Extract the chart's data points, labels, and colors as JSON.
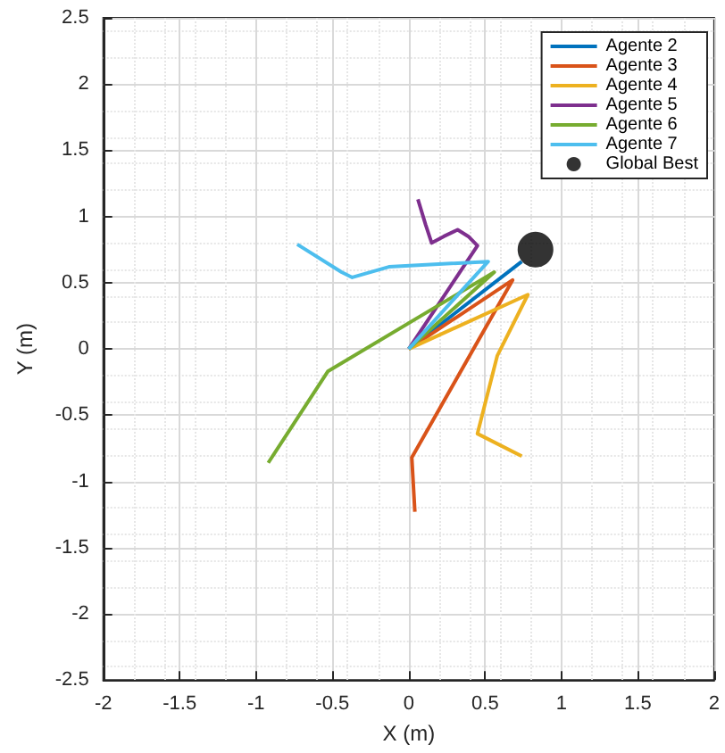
{
  "chart_data": {
    "type": "line",
    "xlabel": "X (m)",
    "ylabel": "Y (m)",
    "xlim": [
      -2,
      2
    ],
    "xticks": [
      -2,
      -1.5,
      -1,
      -0.5,
      0,
      0.5,
      1,
      1.5,
      2
    ],
    "ylim": [
      -2.5,
      2.5
    ],
    "yticks": [
      -2.5,
      -2,
      -1.5,
      -1,
      -0.5,
      0,
      0.5,
      1,
      1.5,
      2,
      2.5
    ],
    "grid": true,
    "legend": "top right",
    "series": [
      {
        "name": "Agente 2",
        "color": "#0072bd",
        "x": [
          0,
          0.74
        ],
        "values": [
          0,
          0.66
        ]
      },
      {
        "name": "Agente 3",
        "color": "#d95319",
        "x": [
          0,
          0.68,
          0.02,
          0.04
        ],
        "values": [
          0,
          0.52,
          -0.82,
          -1.23
        ]
      },
      {
        "name": "Agente 4",
        "color": "#edb120",
        "x": [
          0,
          0.78,
          0.58,
          0.45,
          0.74
        ],
        "values": [
          0,
          0.41,
          -0.05,
          -0.64,
          -0.81
        ]
      },
      {
        "name": "Agente 5",
        "color": "#7e2f8e",
        "x": [
          0,
          0.45,
          0.39,
          0.32,
          0.23,
          0.15,
          0.11,
          0.06
        ],
        "values": [
          0,
          0.78,
          0.85,
          0.9,
          0.85,
          0.8,
          0.94,
          1.13
        ]
      },
      {
        "name": "Agente 6",
        "color": "#77ac30",
        "x": [
          0,
          0.56,
          -0.53,
          -0.92
        ],
        "values": [
          0,
          0.58,
          -0.17,
          -0.86
        ]
      },
      {
        "name": "Agente 7",
        "color": "#4dbeee",
        "x": [
          0,
          0.52,
          -0.13,
          -0.37,
          -0.44,
          -0.73
        ],
        "values": [
          0,
          0.66,
          0.62,
          0.54,
          0.58,
          0.79
        ]
      },
      {
        "name": "Global Best",
        "type": "scatter",
        "marker": "circle",
        "color": "#000000",
        "x": [
          0.83
        ],
        "values": [
          0.75
        ]
      }
    ]
  }
}
